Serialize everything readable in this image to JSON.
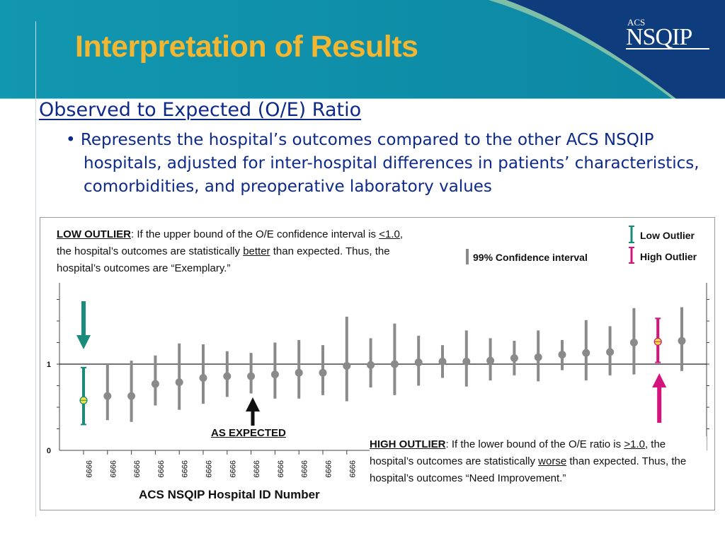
{
  "slide": {
    "title": "Interpretation of Results",
    "subtitle": "Observed to Expected (O/E) Ratio",
    "bullet_text": "Represents the hospital’s outcomes compared to the other ACS NSQIP hospitals, adjusted for inter-hospital differences in patients’ characteristics, comorbidities, and preoperative laboratory values",
    "logo_small": "ACS",
    "logo_main": "NSQIP"
  },
  "colors": {
    "header_teal": "#0e93ad",
    "header_navy": "#0f3c7c",
    "title_gold": "#f2b631",
    "text_navy": "#0d2a8a",
    "low_outlier": "#1a8a7a",
    "high_outlier": "#d4147d",
    "ci_gray": "#8a8a8a",
    "dot_gray": "#8a8a8a",
    "arrow_black": "#111111"
  },
  "callouts": {
    "low": {
      "heading": "LOW OUTLIER",
      "text1": ": If the upper bound of the O/E confidence interval is ",
      "threshold": "<1.0",
      "text2": ", the hospital’s outcomes are statistically ",
      "emphasis": "better",
      "text3": " than expected. Thus, the hospital’s outcomes are “Exemplary.”"
    },
    "high": {
      "heading": "HIGH OUTLIER",
      "text1": ": If the lower bound of the O/E ratio is ",
      "threshold": ">1.0",
      "text2": ", the hospital’s outcomes are statistically ",
      "emphasis": "worse",
      "text3": " than expected. Thus, the hospital’s outcomes “Need Improvement.”"
    },
    "as_expected": "AS EXPECTED"
  },
  "chart_data": {
    "type": "scatter",
    "subtype": "point estimates with 99% confidence intervals (caterpillar plot)",
    "xlabel": "ACS NSQIP Hospital ID Number",
    "ylabel": "",
    "ylim": [
      0,
      2
    ],
    "y_ticks": [
      "0",
      "1"
    ],
    "reference_line": 1,
    "x_tick_labels": [
      "9999",
      "9999",
      "9999",
      "9999",
      "9999",
      "9999",
      "9999",
      "9999",
      "9999",
      "9999",
      "9999",
      "9999"
    ],
    "legend": {
      "ci": "99% Confidence interval",
      "low": "Low Outlier",
      "high": "High Outlier"
    },
    "points": [
      {
        "oe": 0.58,
        "lo": 0.3,
        "hi": 0.96,
        "status": "low"
      },
      {
        "oe": 0.63,
        "lo": 0.35,
        "hi": 1.0,
        "status": "expected"
      },
      {
        "oe": 0.63,
        "lo": 0.33,
        "hi": 1.04,
        "status": "expected"
      },
      {
        "oe": 0.77,
        "lo": 0.52,
        "hi": 1.1,
        "status": "expected"
      },
      {
        "oe": 0.79,
        "lo": 0.47,
        "hi": 1.24,
        "status": "expected"
      },
      {
        "oe": 0.84,
        "lo": 0.54,
        "hi": 1.23,
        "status": "expected"
      },
      {
        "oe": 0.86,
        "lo": 0.62,
        "hi": 1.15,
        "status": "expected"
      },
      {
        "oe": 0.86,
        "lo": 0.66,
        "hi": 1.13,
        "status": "expected"
      },
      {
        "oe": 0.88,
        "lo": 0.6,
        "hi": 1.25,
        "status": "expected"
      },
      {
        "oe": 0.9,
        "lo": 0.6,
        "hi": 1.28,
        "status": "expected"
      },
      {
        "oe": 0.9,
        "lo": 0.64,
        "hi": 1.22,
        "status": "expected"
      },
      {
        "oe": 0.98,
        "lo": 0.57,
        "hi": 1.55,
        "status": "expected"
      },
      {
        "oe": 0.99,
        "lo": 0.73,
        "hi": 1.3,
        "status": "expected"
      },
      {
        "oe": 1.0,
        "lo": 0.64,
        "hi": 1.47,
        "status": "expected"
      },
      {
        "oe": 1.02,
        "lo": 0.75,
        "hi": 1.33,
        "status": "expected"
      },
      {
        "oe": 1.03,
        "lo": 0.84,
        "hi": 1.22,
        "status": "expected"
      },
      {
        "oe": 1.03,
        "lo": 0.74,
        "hi": 1.39,
        "status": "expected"
      },
      {
        "oe": 1.04,
        "lo": 0.81,
        "hi": 1.3,
        "status": "expected"
      },
      {
        "oe": 1.07,
        "lo": 0.87,
        "hi": 1.27,
        "status": "expected"
      },
      {
        "oe": 1.08,
        "lo": 0.8,
        "hi": 1.39,
        "status": "expected"
      },
      {
        "oe": 1.11,
        "lo": 0.93,
        "hi": 1.28,
        "status": "expected"
      },
      {
        "oe": 1.13,
        "lo": 0.81,
        "hi": 1.51,
        "status": "expected"
      },
      {
        "oe": 1.14,
        "lo": 0.87,
        "hi": 1.44,
        "status": "expected"
      },
      {
        "oe": 1.25,
        "lo": 0.88,
        "hi": 1.65,
        "status": "expected"
      },
      {
        "oe": 1.26,
        "lo": 1.02,
        "hi": 1.53,
        "status": "high"
      },
      {
        "oe": 1.27,
        "lo": 0.92,
        "hi": 1.66,
        "status": "expected"
      }
    ]
  }
}
